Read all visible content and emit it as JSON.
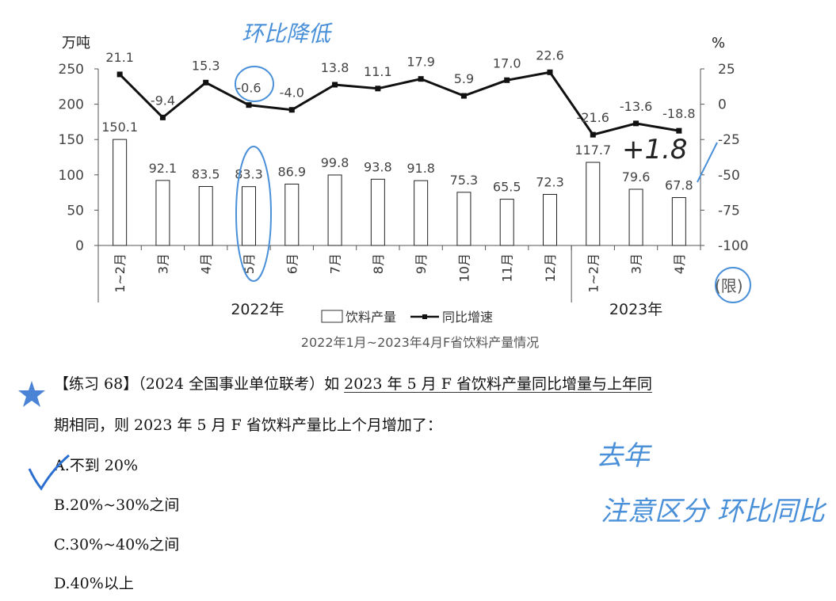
{
  "chart_data": {
    "type": "bar+line",
    "title": "2022年1月~2023年4月F省饮料产量情况",
    "left_axis_unit": "万吨",
    "right_axis_unit": "%",
    "left_ylim": [
      0,
      250
    ],
    "left_ticks": [
      0,
      50,
      100,
      150,
      200,
      250
    ],
    "right_ylim": [
      -100,
      25
    ],
    "right_ticks": [
      25,
      0,
      -25,
      -50,
      -75,
      -100
    ],
    "categories": [
      "1~2月",
      "3月",
      "4月",
      "5月",
      "6月",
      "7月",
      "8月",
      "9月",
      "10月",
      "11月",
      "12月",
      "1~2月",
      "3月",
      "4月"
    ],
    "year_groups": [
      {
        "label": "2022年",
        "start": 0,
        "end": 10
      },
      {
        "label": "2023年",
        "start": 11,
        "end": 13
      }
    ],
    "series": [
      {
        "name": "饮料产量",
        "kind": "bar",
        "axis": "left",
        "values": [
          150.1,
          92.1,
          83.5,
          83.3,
          86.9,
          99.8,
          93.8,
          91.8,
          75.3,
          65.5,
          72.3,
          117.7,
          79.6,
          67.8
        ]
      },
      {
        "name": "同比增速",
        "kind": "line",
        "axis": "right",
        "values": [
          21.1,
          -9.4,
          15.3,
          -0.6,
          -4.0,
          13.8,
          11.1,
          17.9,
          5.9,
          17.0,
          22.6,
          -21.6,
          -13.6,
          -18.8
        ]
      }
    ],
    "legend_placement": "bottom-center",
    "grid": false
  },
  "handwriting": {
    "top_note": "环比降低",
    "side_note_1": "+1.8",
    "side_note_2": "去年",
    "side_note_3": "注意区分 环比同比",
    "circle_note": "(限)"
  },
  "question": {
    "line1_prefix": "【练习 68】（2024 全国事业单位联考）如 ",
    "line1_underlined": "2023 年 5 月 F 省饮料产量同比增量与上年同",
    "line2_prefix": "期相同",
    "line2_rest": "，则 2023 年 5 月 F 省饮料产量比上个月增加了：",
    "options": [
      "A.不到 20%",
      "B.20%~30%之间",
      "C.30%~40%之间",
      "D.40%以上"
    ]
  }
}
